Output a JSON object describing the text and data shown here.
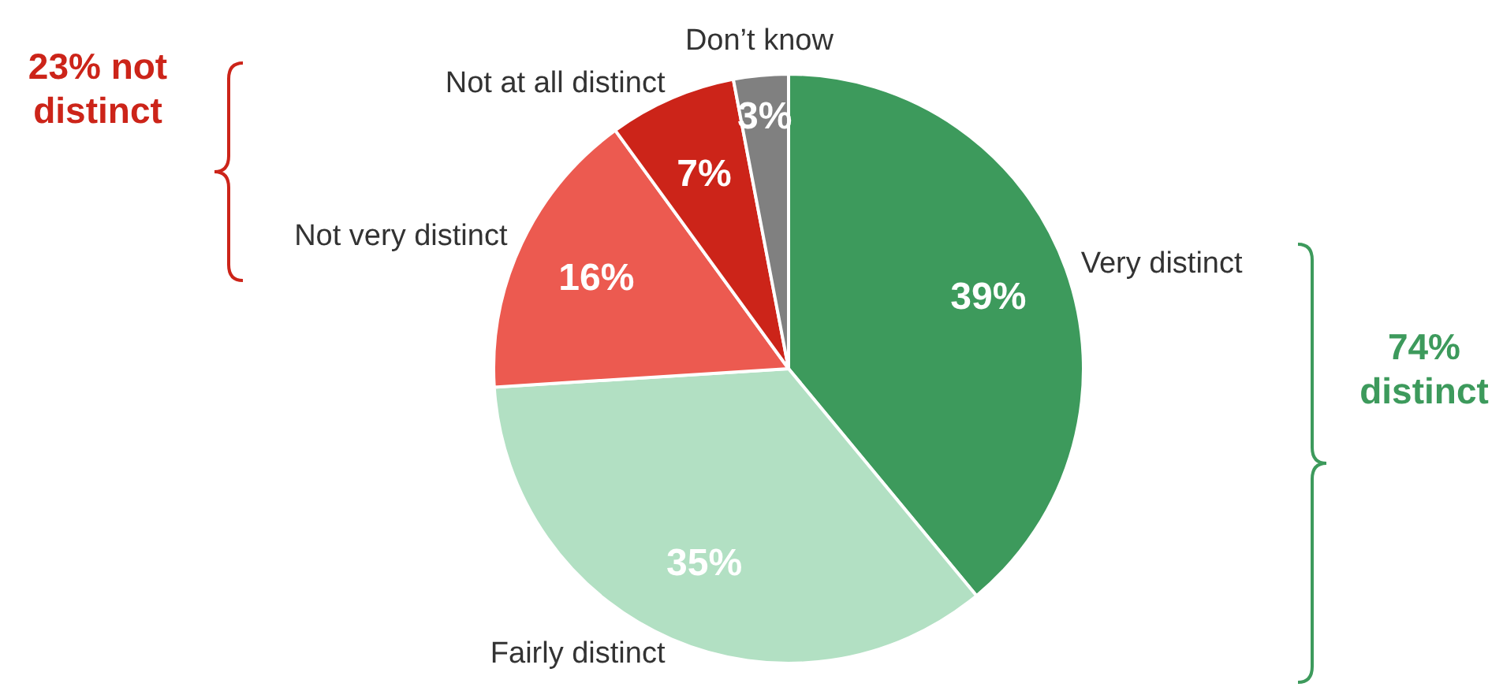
{
  "chart_data": {
    "type": "pie",
    "categories": [
      "Very distinct",
      "Fairly distinct",
      "Not very distinct",
      "Not at all distinct",
      "Don’t know"
    ],
    "values": [
      39,
      35,
      16,
      7,
      3
    ],
    "value_labels": [
      "39%",
      "35%",
      "16%",
      "7%",
      "3%"
    ],
    "colors": [
      "#3d9a5c",
      "#b2e0c3",
      "#ec5a50",
      "#cc2419",
      "#808080"
    ],
    "annotations": [
      "23% not distinct",
      "74% distinct"
    ]
  }
}
